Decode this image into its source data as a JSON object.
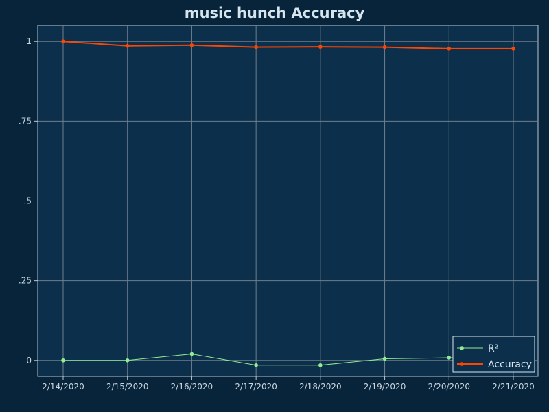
{
  "chart_data": {
    "type": "line",
    "title": "music hunch Accuracy",
    "xlabel": "",
    "ylabel": "",
    "categories": [
      "2/14/2020",
      "2/15/2020",
      "2/16/2020",
      "2/17/2020",
      "2/18/2020",
      "2/19/2020",
      "2/20/2020",
      "2/21/2020"
    ],
    "y_ticks": [
      {
        "value": 1,
        "label": "1"
      },
      {
        "value": 0.75,
        "label": ".75"
      },
      {
        "value": 0.5,
        "label": ".5"
      },
      {
        "value": 0.25,
        "label": ".25"
      },
      {
        "value": 0,
        "label": "0"
      }
    ],
    "ylim": [
      -0.05,
      1.05
    ],
    "grid": true,
    "legend_position": "bottom-right",
    "series": [
      {
        "name": "R²",
        "color": "#90ee90",
        "values": [
          0.0,
          0.0,
          0.02,
          -0.015,
          -0.015,
          0.005,
          0.008,
          0.008
        ]
      },
      {
        "name": "Accuracy",
        "color": "#ff4500",
        "values": [
          1.0,
          0.986,
          0.988,
          0.982,
          0.983,
          0.982,
          0.977,
          0.977
        ]
      }
    ]
  }
}
